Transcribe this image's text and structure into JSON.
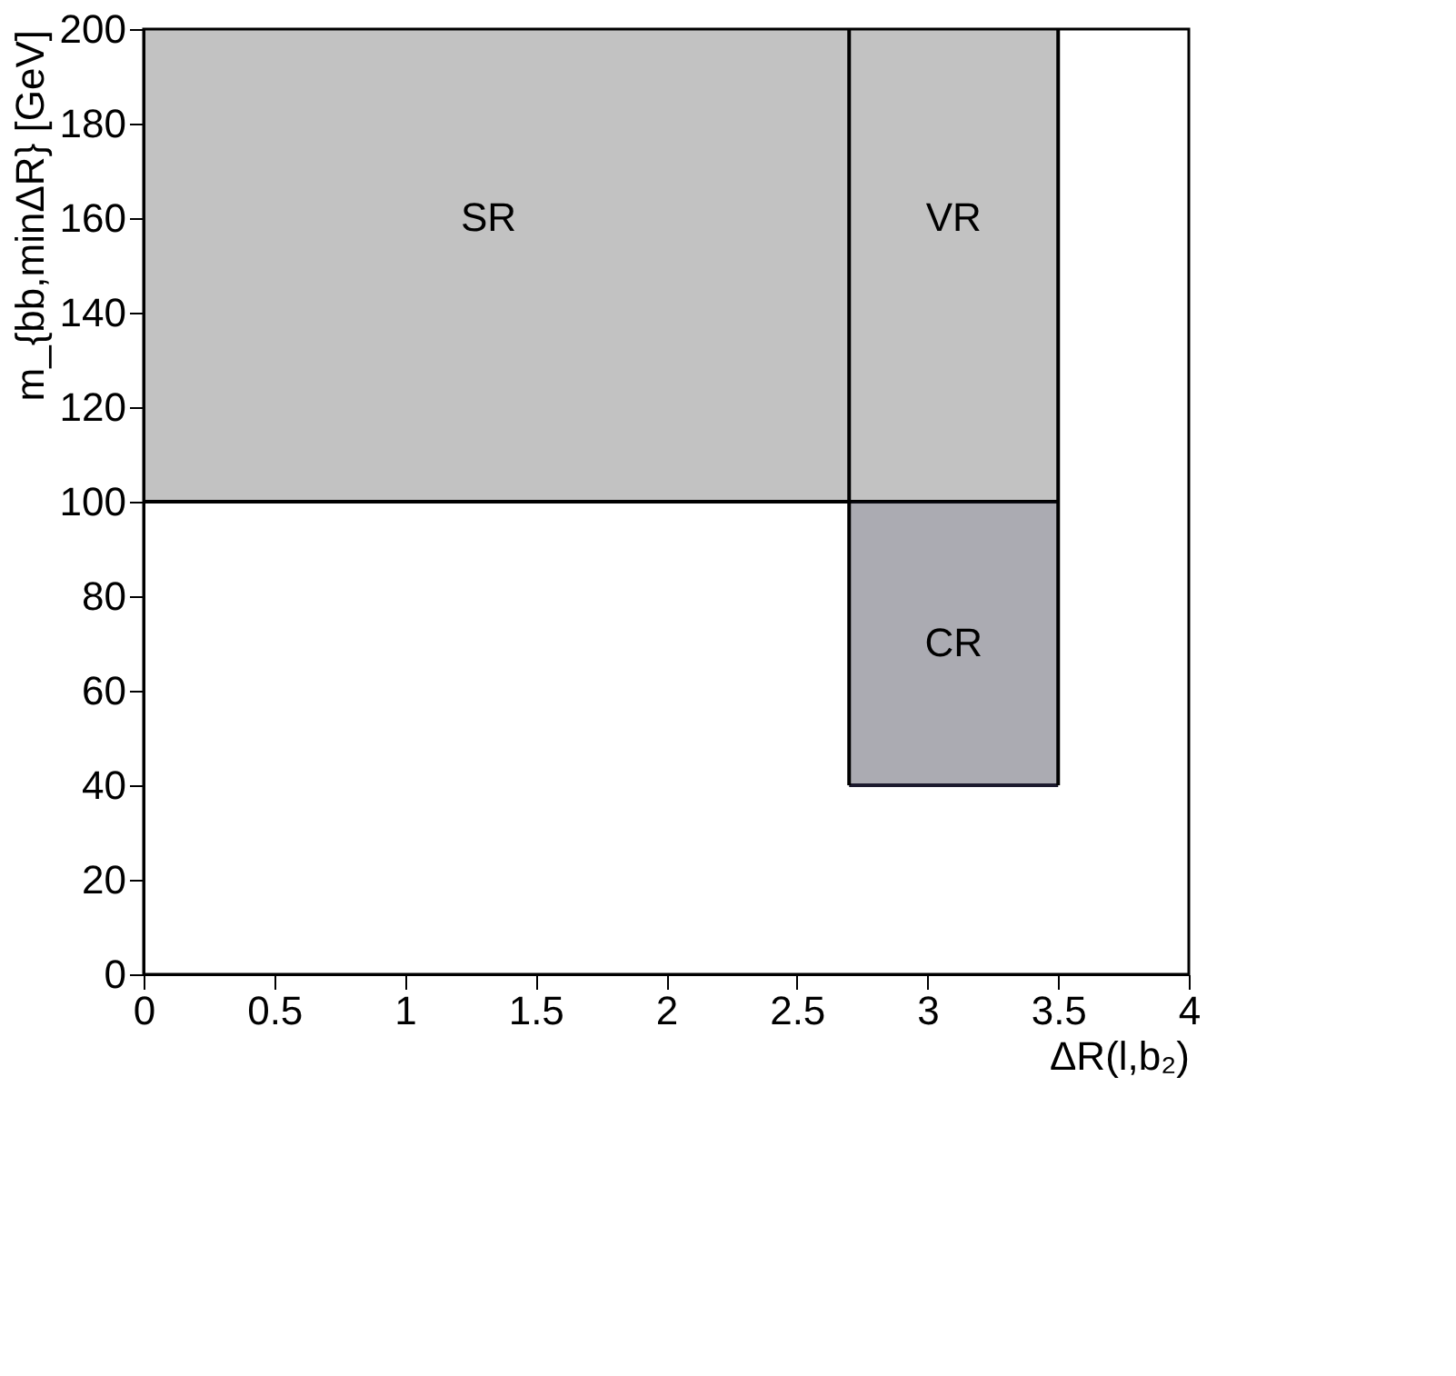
{
  "chart_data": {
    "type": "line",
    "series": [
      {
        "x": [
          0,
          3.5
        ],
        "values": [
          100,
          100
        ],
        "lower": [
          100,
          100
        ],
        "upper": [
          200,
          200
        ],
        "color": "#000000"
      },
      {
        "x": [
          2.7,
          3.5
        ],
        "values": [
          40,
          40
        ],
        "lower": [
          40,
          40
        ],
        "upper": [
          100,
          100
        ],
        "color": "#1c1a2e"
      },
      {
        "x": [
          2.7,
          2.7
        ],
        "values": [
          40,
          200
        ],
        "color": "#000000"
      },
      {
        "x": [
          3.5,
          3.5
        ],
        "values": [
          40,
          200
        ],
        "color": "#000000"
      }
    ],
    "xlabel": "ΔR(l,b₂)",
    "ylabel": "m_{bb,minΔR} [GeV]",
    "xlim": [
      0,
      4
    ],
    "xticks": [
      0,
      0.5,
      1,
      1.5,
      2,
      2.5,
      3,
      3.5,
      4
    ],
    "ylim": [
      0,
      200
    ],
    "yticks": [
      0,
      20,
      40,
      60,
      80,
      100,
      120,
      140,
      160,
      180,
      200
    ],
    "grid": false,
    "marker": "none",
    "line_style": "solid",
    "annotations": [
      "SR",
      "VR",
      "CR"
    ]
  }
}
